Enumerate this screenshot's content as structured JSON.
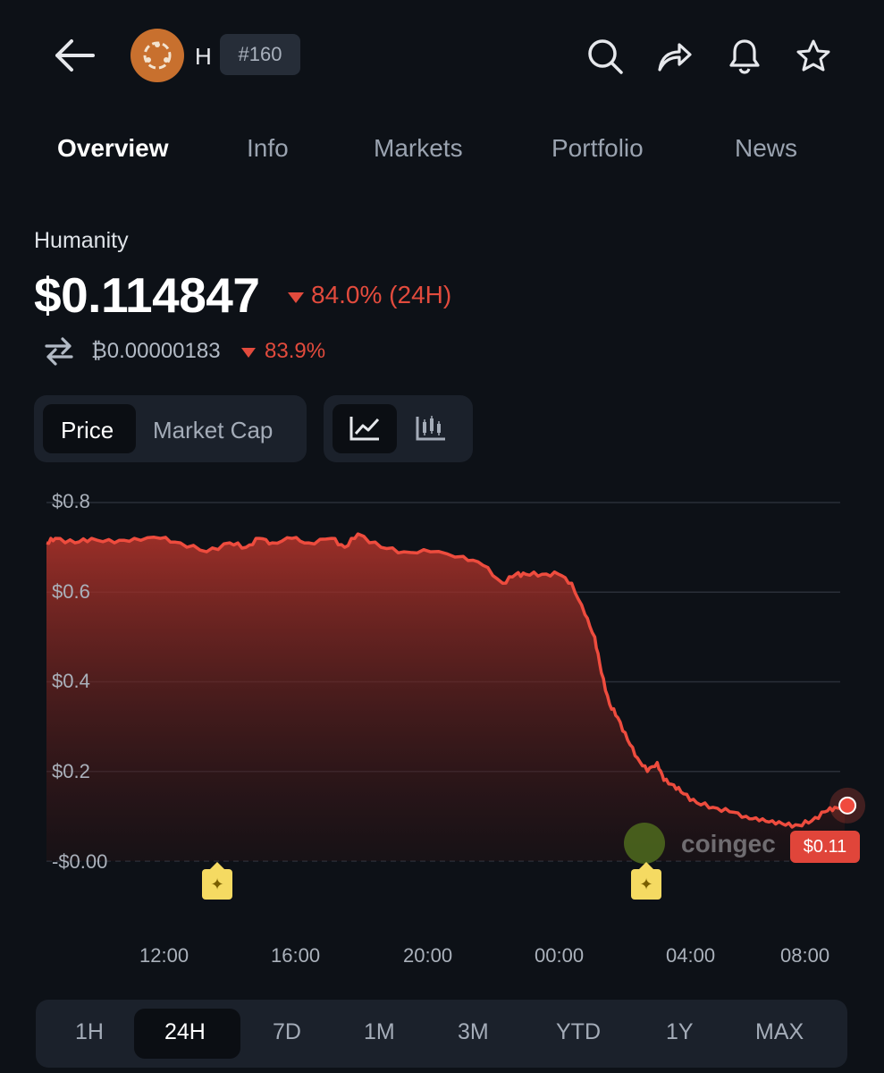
{
  "header": {
    "symbol": "H",
    "rank": "#160",
    "icons": [
      "back-arrow-icon",
      "search-icon",
      "share-icon",
      "bell-icon",
      "star-icon"
    ]
  },
  "tabs": [
    {
      "label": "Overview",
      "active": true
    },
    {
      "label": "Info",
      "active": false
    },
    {
      "label": "Markets",
      "active": false
    },
    {
      "label": "Portfolio",
      "active": false
    },
    {
      "label": "News",
      "active": false
    }
  ],
  "coin": {
    "name": "Humanity",
    "price": "$0.114847",
    "change_24h": "84.0% (24H)",
    "btc_price": "₿0.00000183",
    "btc_change": "83.9%"
  },
  "colors": {
    "background": "#0d1117",
    "negative": "#e24b3d",
    "panel": "#1b212b",
    "brand_logo": "#c8702e"
  },
  "toggles": {
    "price_label": "Price",
    "market_cap_label": "Market Cap",
    "selected": "Price",
    "chart_types": [
      "line-chart-icon",
      "candlestick-icon"
    ],
    "selected_chart_type": "line-chart-icon"
  },
  "chart_data": {
    "type": "area",
    "yticks": [
      "$0.8",
      "$0.6",
      "$0.4",
      "$0.2",
      "-$0.00"
    ],
    "ylim": [
      0,
      0.8
    ],
    "xticks": [
      "12:00",
      "16:00",
      "20:00",
      "00:00",
      "04:00",
      "08:00"
    ],
    "x_hours": [
      8.25,
      8.6,
      9.2,
      9.7,
      10.4,
      11.0,
      11.8,
      12.4,
      13.2,
      13.9,
      14.4,
      14.8,
      15.2,
      15.8,
      16.3,
      17.0,
      17.4,
      17.8,
      18.5,
      19.2,
      20.0,
      21.0,
      21.6,
      22.2,
      22.6,
      22.9,
      23.4,
      23.9,
      24.3,
      24.7,
      25.0,
      25.2,
      25.45,
      25.7,
      26.0,
      26.3,
      26.6,
      26.9,
      27.1,
      27.4,
      27.7,
      28.1,
      28.6,
      29.1,
      29.6,
      30.0,
      30.4,
      30.8,
      31.2,
      31.6,
      32.0,
      32.3,
      32.6
    ],
    "values": [
      0.71,
      0.72,
      0.71,
      0.72,
      0.71,
      0.72,
      0.72,
      0.71,
      0.69,
      0.71,
      0.7,
      0.72,
      0.71,
      0.72,
      0.71,
      0.72,
      0.7,
      0.73,
      0.7,
      0.69,
      0.69,
      0.68,
      0.66,
      0.62,
      0.64,
      0.64,
      0.64,
      0.64,
      0.62,
      0.55,
      0.5,
      0.42,
      0.35,
      0.32,
      0.27,
      0.23,
      0.2,
      0.22,
      0.18,
      0.17,
      0.15,
      0.13,
      0.12,
      0.11,
      0.1,
      0.09,
      0.09,
      0.08,
      0.08,
      0.09,
      0.11,
      0.12,
      0.12
    ],
    "current_label": "$0.11",
    "watermark": "coingec",
    "line_color": "#e24b3d",
    "event_markers": 2
  },
  "ranges": {
    "options": [
      "1H",
      "24H",
      "7D",
      "1M",
      "3M",
      "YTD",
      "1Y",
      "MAX"
    ],
    "selected": "24H"
  }
}
